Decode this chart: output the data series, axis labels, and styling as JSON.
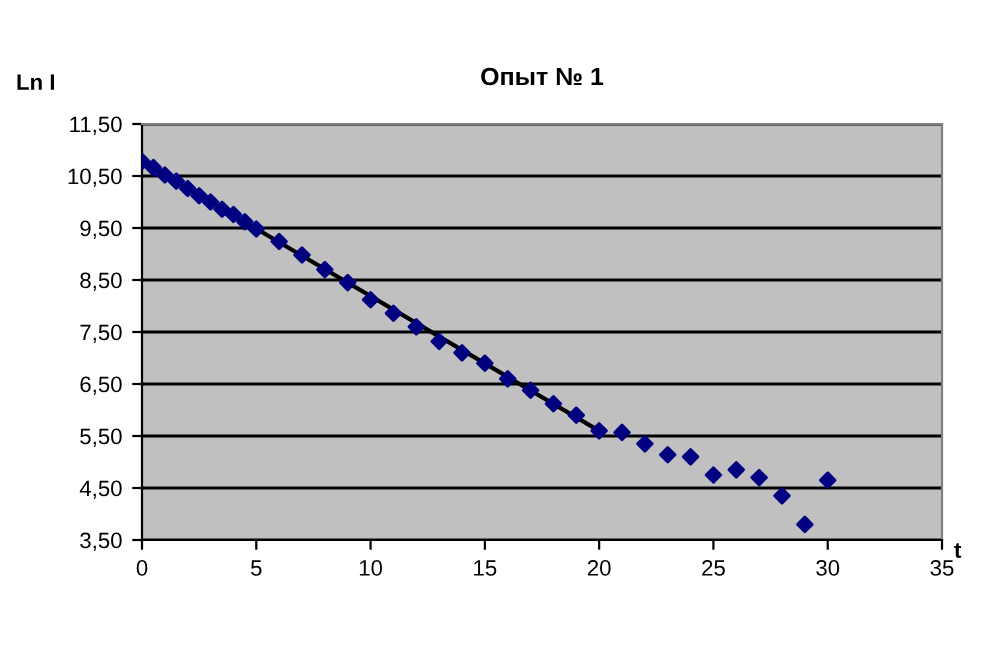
{
  "chart_data": {
    "type": "scatter",
    "title": "Опыт № 1",
    "xlabel": "t",
    "ylabel": "Ln I",
    "series": [
      {
        "color": "#000080",
        "marker": "diamond",
        "x": [
          0,
          0.5,
          1,
          1.5,
          2,
          2.5,
          3,
          3.5,
          4,
          4.5,
          5,
          6,
          7,
          8,
          9,
          10,
          11,
          12,
          13,
          14,
          15,
          16,
          17,
          18,
          19,
          20,
          21,
          22,
          23,
          24,
          25,
          26,
          27,
          28,
          29,
          30
        ],
        "values": [
          10.78,
          10.66,
          10.52,
          10.4,
          10.26,
          10.12,
          10.0,
          9.86,
          9.76,
          9.62,
          9.48,
          9.24,
          8.98,
          8.7,
          8.45,
          8.12,
          7.86,
          7.6,
          7.32,
          7.1,
          6.9,
          6.6,
          6.38,
          6.12,
          5.9,
          5.6,
          5.57,
          5.35,
          5.14,
          5.1,
          4.75,
          4.85,
          4.7,
          4.35,
          3.8,
          4.65
        ]
      },
      {
        "type": "line",
        "color": "#000000",
        "line_style": "solid",
        "x": [
          0,
          20
        ],
        "values": [
          10.78,
          5.6
        ]
      }
    ],
    "xlim": [
      0,
      35
    ],
    "xticks": [
      0,
      5,
      10,
      15,
      20,
      25,
      30,
      35
    ],
    "ylim": [
      3.5,
      11.5
    ],
    "yticks": [
      {
        "value": 3.5,
        "label": "3,50"
      },
      {
        "value": 4.5,
        "label": "4,50"
      },
      {
        "value": 5.5,
        "label": "5,50"
      },
      {
        "value": 6.5,
        "label": "6,50"
      },
      {
        "value": 7.5,
        "label": "7,50"
      },
      {
        "value": 8.5,
        "label": "8,50"
      },
      {
        "value": 9.5,
        "label": "9,50"
      },
      {
        "value": 10.5,
        "label": "10,50"
      },
      {
        "value": 11.5,
        "label": "11,50"
      }
    ],
    "grid": "y",
    "legend": false
  }
}
